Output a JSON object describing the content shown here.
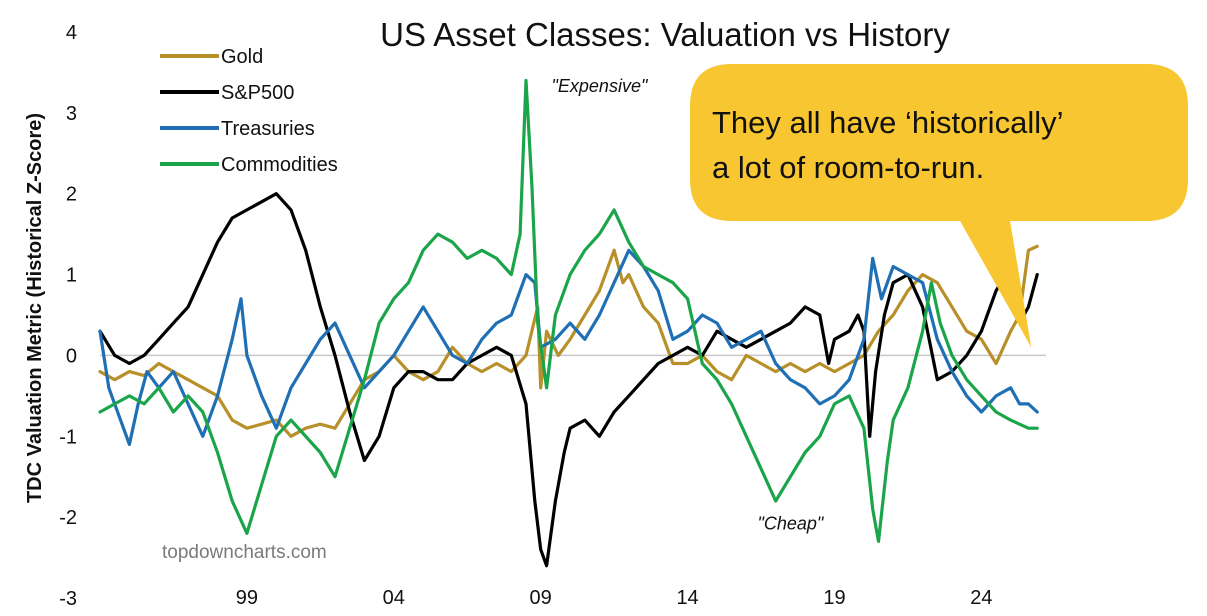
{
  "chart_data": {
    "type": "line",
    "title": "US Asset Classes: Valuation vs History",
    "ylabel": "TDC Valuation Metric (Historical Z-Score)",
    "xlabel": "",
    "ylim": [
      -3,
      4
    ],
    "y_ticks": [
      "4",
      "3",
      "2",
      "1",
      "0",
      "-1",
      "-2",
      "-3"
    ],
    "xlim": [
      1994,
      2026.2
    ],
    "x_ticks": [
      {
        "year": 1999,
        "label": "99"
      },
      {
        "year": 2004,
        "label": "04"
      },
      {
        "year": 2009,
        "label": "09"
      },
      {
        "year": 2014,
        "label": "14"
      },
      {
        "year": 2019,
        "label": "19"
      },
      {
        "year": 2024,
        "label": "24"
      }
    ],
    "zero_line": true,
    "legend_position": "top-left",
    "series": [
      {
        "name": "Gold",
        "color": "#B8902A",
        "points": [
          [
            1994.0,
            -0.2
          ],
          [
            1994.5,
            -0.3
          ],
          [
            1995.0,
            -0.2
          ],
          [
            1995.5,
            -0.25
          ],
          [
            1996.0,
            -0.1
          ],
          [
            1996.5,
            -0.2
          ],
          [
            1997.0,
            -0.3
          ],
          [
            1997.5,
            -0.4
          ],
          [
            1998.0,
            -0.5
          ],
          [
            1998.5,
            -0.8
          ],
          [
            1999.0,
            -0.9
          ],
          [
            1999.5,
            -0.85
          ],
          [
            2000.0,
            -0.8
          ],
          [
            2000.5,
            -1.0
          ],
          [
            2001.0,
            -0.9
          ],
          [
            2001.5,
            -0.85
          ],
          [
            2002.0,
            -0.9
          ],
          [
            2002.5,
            -0.6
          ],
          [
            2003.0,
            -0.3
          ],
          [
            2003.5,
            -0.2
          ],
          [
            2004.0,
            0.0
          ],
          [
            2004.5,
            -0.2
          ],
          [
            2005.0,
            -0.3
          ],
          [
            2005.5,
            -0.2
          ],
          [
            2006.0,
            0.1
          ],
          [
            2006.5,
            -0.1
          ],
          [
            2007.0,
            -0.2
          ],
          [
            2007.5,
            -0.1
          ],
          [
            2008.0,
            -0.2
          ],
          [
            2008.5,
            0.0
          ],
          [
            2008.9,
            0.6
          ],
          [
            2009.0,
            -0.4
          ],
          [
            2009.2,
            0.3
          ],
          [
            2009.6,
            0.0
          ],
          [
            2010.0,
            0.2
          ],
          [
            2010.5,
            0.5
          ],
          [
            2011.0,
            0.8
          ],
          [
            2011.5,
            1.3
          ],
          [
            2011.8,
            0.9
          ],
          [
            2012.0,
            1.0
          ],
          [
            2012.5,
            0.6
          ],
          [
            2013.0,
            0.4
          ],
          [
            2013.5,
            -0.1
          ],
          [
            2014.0,
            -0.1
          ],
          [
            2014.5,
            0.0
          ],
          [
            2015.0,
            -0.2
          ],
          [
            2015.5,
            -0.3
          ],
          [
            2016.0,
            0.0
          ],
          [
            2016.5,
            -0.1
          ],
          [
            2017.0,
            -0.2
          ],
          [
            2017.5,
            -0.1
          ],
          [
            2018.0,
            -0.2
          ],
          [
            2018.5,
            -0.1
          ],
          [
            2019.0,
            -0.2
          ],
          [
            2019.5,
            -0.1
          ],
          [
            2020.0,
            0.0
          ],
          [
            2020.5,
            0.3
          ],
          [
            2021.0,
            0.5
          ],
          [
            2021.5,
            0.8
          ],
          [
            2022.0,
            1.0
          ],
          [
            2022.5,
            0.9
          ],
          [
            2023.0,
            0.6
          ],
          [
            2023.5,
            0.3
          ],
          [
            2024.0,
            0.2
          ],
          [
            2024.5,
            -0.1
          ],
          [
            2025.0,
            0.3
          ],
          [
            2025.3,
            0.5
          ],
          [
            2025.6,
            1.3
          ],
          [
            2025.9,
            1.35
          ]
        ]
      },
      {
        "name": "S&P500",
        "color": "#000000",
        "points": [
          [
            1994.0,
            0.3
          ],
          [
            1994.5,
            0.0
          ],
          [
            1995.0,
            -0.1
          ],
          [
            1995.5,
            0.0
          ],
          [
            1996.0,
            0.2
          ],
          [
            1996.5,
            0.4
          ],
          [
            1997.0,
            0.6
          ],
          [
            1997.5,
            1.0
          ],
          [
            1998.0,
            1.4
          ],
          [
            1998.5,
            1.7
          ],
          [
            1999.0,
            1.8
          ],
          [
            1999.5,
            1.9
          ],
          [
            2000.0,
            2.0
          ],
          [
            2000.5,
            1.8
          ],
          [
            2001.0,
            1.3
          ],
          [
            2001.5,
            0.6
          ],
          [
            2002.0,
            0.0
          ],
          [
            2002.5,
            -0.7
          ],
          [
            2003.0,
            -1.3
          ],
          [
            2003.5,
            -1.0
          ],
          [
            2004.0,
            -0.4
          ],
          [
            2004.5,
            -0.2
          ],
          [
            2005.0,
            -0.2
          ],
          [
            2005.5,
            -0.3
          ],
          [
            2006.0,
            -0.3
          ],
          [
            2006.5,
            -0.1
          ],
          [
            2007.0,
            0.0
          ],
          [
            2007.5,
            0.1
          ],
          [
            2008.0,
            0.0
          ],
          [
            2008.5,
            -0.6
          ],
          [
            2008.8,
            -1.8
          ],
          [
            2009.0,
            -2.4
          ],
          [
            2009.2,
            -2.6
          ],
          [
            2009.5,
            -1.8
          ],
          [
            2009.8,
            -1.2
          ],
          [
            2010.0,
            -0.9
          ],
          [
            2010.5,
            -0.8
          ],
          [
            2011.0,
            -1.0
          ],
          [
            2011.5,
            -0.7
          ],
          [
            2012.0,
            -0.5
          ],
          [
            2012.5,
            -0.3
          ],
          [
            2013.0,
            -0.1
          ],
          [
            2013.5,
            0.0
          ],
          [
            2014.0,
            0.1
          ],
          [
            2014.5,
            0.0
          ],
          [
            2015.0,
            0.3
          ],
          [
            2015.5,
            0.2
          ],
          [
            2016.0,
            0.1
          ],
          [
            2016.5,
            0.2
          ],
          [
            2017.0,
            0.3
          ],
          [
            2017.5,
            0.4
          ],
          [
            2018.0,
            0.6
          ],
          [
            2018.5,
            0.5
          ],
          [
            2018.8,
            -0.1
          ],
          [
            2019.0,
            0.2
          ],
          [
            2019.5,
            0.3
          ],
          [
            2019.8,
            0.5
          ],
          [
            2020.0,
            0.3
          ],
          [
            2020.2,
            -1.0
          ],
          [
            2020.4,
            -0.2
          ],
          [
            2020.7,
            0.5
          ],
          [
            2021.0,
            0.9
          ],
          [
            2021.5,
            1.0
          ],
          [
            2022.0,
            0.6
          ],
          [
            2022.5,
            -0.3
          ],
          [
            2023.0,
            -0.2
          ],
          [
            2023.5,
            0.0
          ],
          [
            2024.0,
            0.3
          ],
          [
            2024.5,
            0.8
          ],
          [
            2025.0,
            1.1
          ],
          [
            2025.3,
            0.4
          ],
          [
            2025.6,
            0.6
          ],
          [
            2025.9,
            1.0
          ]
        ]
      },
      {
        "name": "Treasuries",
        "color": "#1F6FB5",
        "points": [
          [
            1994.0,
            0.3
          ],
          [
            1994.3,
            -0.4
          ],
          [
            1994.6,
            -0.7
          ],
          [
            1995.0,
            -1.1
          ],
          [
            1995.3,
            -0.6
          ],
          [
            1995.6,
            -0.2
          ],
          [
            1996.0,
            -0.4
          ],
          [
            1996.5,
            -0.2
          ],
          [
            1997.0,
            -0.6
          ],
          [
            1997.5,
            -1.0
          ],
          [
            1998.0,
            -0.5
          ],
          [
            1998.5,
            0.2
          ],
          [
            1998.8,
            0.7
          ],
          [
            1999.0,
            0.0
          ],
          [
            1999.5,
            -0.5
          ],
          [
            2000.0,
            -0.9
          ],
          [
            2000.5,
            -0.4
          ],
          [
            2001.0,
            -0.1
          ],
          [
            2001.5,
            0.2
          ],
          [
            2002.0,
            0.4
          ],
          [
            2002.5,
            0.0
          ],
          [
            2003.0,
            -0.4
          ],
          [
            2003.5,
            -0.2
          ],
          [
            2004.0,
            0.0
          ],
          [
            2004.5,
            0.3
          ],
          [
            2005.0,
            0.6
          ],
          [
            2005.5,
            0.3
          ],
          [
            2006.0,
            0.0
          ],
          [
            2006.5,
            -0.1
          ],
          [
            2007.0,
            0.2
          ],
          [
            2007.5,
            0.4
          ],
          [
            2008.0,
            0.5
          ],
          [
            2008.5,
            1.0
          ],
          [
            2008.8,
            0.9
          ],
          [
            2009.0,
            0.1
          ],
          [
            2009.5,
            0.2
          ],
          [
            2010.0,
            0.4
          ],
          [
            2010.5,
            0.2
          ],
          [
            2011.0,
            0.5
          ],
          [
            2011.5,
            0.9
          ],
          [
            2012.0,
            1.3
          ],
          [
            2012.5,
            1.1
          ],
          [
            2013.0,
            0.8
          ],
          [
            2013.5,
            0.2
          ],
          [
            2014.0,
            0.3
          ],
          [
            2014.5,
            0.5
          ],
          [
            2015.0,
            0.4
          ],
          [
            2015.5,
            0.1
          ],
          [
            2016.0,
            0.2
          ],
          [
            2016.5,
            0.3
          ],
          [
            2017.0,
            -0.1
          ],
          [
            2017.5,
            -0.3
          ],
          [
            2018.0,
            -0.4
          ],
          [
            2018.5,
            -0.6
          ],
          [
            2019.0,
            -0.5
          ],
          [
            2019.5,
            -0.3
          ],
          [
            2020.0,
            0.2
          ],
          [
            2020.3,
            1.2
          ],
          [
            2020.6,
            0.7
          ],
          [
            2021.0,
            1.1
          ],
          [
            2021.5,
            1.0
          ],
          [
            2022.0,
            0.9
          ],
          [
            2022.5,
            0.2
          ],
          [
            2023.0,
            -0.2
          ],
          [
            2023.5,
            -0.5
          ],
          [
            2024.0,
            -0.7
          ],
          [
            2024.5,
            -0.5
          ],
          [
            2025.0,
            -0.4
          ],
          [
            2025.3,
            -0.6
          ],
          [
            2025.6,
            -0.6
          ],
          [
            2025.9,
            -0.7
          ]
        ]
      },
      {
        "name": "Commodities",
        "color": "#1BA54A",
        "points": [
          [
            1994.0,
            -0.7
          ],
          [
            1994.5,
            -0.6
          ],
          [
            1995.0,
            -0.5
          ],
          [
            1995.5,
            -0.6
          ],
          [
            1996.0,
            -0.4
          ],
          [
            1996.5,
            -0.7
          ],
          [
            1997.0,
            -0.5
          ],
          [
            1997.5,
            -0.7
          ],
          [
            1998.0,
            -1.2
          ],
          [
            1998.5,
            -1.8
          ],
          [
            1999.0,
            -2.2
          ],
          [
            1999.5,
            -1.6
          ],
          [
            2000.0,
            -1.0
          ],
          [
            2000.5,
            -0.8
          ],
          [
            2001.0,
            -1.0
          ],
          [
            2001.5,
            -1.2
          ],
          [
            2002.0,
            -1.5
          ],
          [
            2002.5,
            -0.9
          ],
          [
            2003.0,
            -0.3
          ],
          [
            2003.5,
            0.4
          ],
          [
            2004.0,
            0.7
          ],
          [
            2004.5,
            0.9
          ],
          [
            2005.0,
            1.3
          ],
          [
            2005.5,
            1.5
          ],
          [
            2006.0,
            1.4
          ],
          [
            2006.5,
            1.2
          ],
          [
            2007.0,
            1.3
          ],
          [
            2007.5,
            1.2
          ],
          [
            2008.0,
            1.0
          ],
          [
            2008.3,
            1.5
          ],
          [
            2008.5,
            3.4
          ],
          [
            2008.7,
            2.1
          ],
          [
            2008.9,
            0.4
          ],
          [
            2009.2,
            -0.4
          ],
          [
            2009.5,
            0.5
          ],
          [
            2010.0,
            1.0
          ],
          [
            2010.5,
            1.3
          ],
          [
            2011.0,
            1.5
          ],
          [
            2011.5,
            1.8
          ],
          [
            2012.0,
            1.4
          ],
          [
            2012.5,
            1.1
          ],
          [
            2013.0,
            1.0
          ],
          [
            2013.5,
            0.9
          ],
          [
            2014.0,
            0.7
          ],
          [
            2014.5,
            -0.1
          ],
          [
            2015.0,
            -0.3
          ],
          [
            2015.5,
            -0.6
          ],
          [
            2016.0,
            -1.0
          ],
          [
            2016.5,
            -1.4
          ],
          [
            2017.0,
            -1.8
          ],
          [
            2017.5,
            -1.5
          ],
          [
            2018.0,
            -1.2
          ],
          [
            2018.5,
            -1.0
          ],
          [
            2019.0,
            -0.6
          ],
          [
            2019.5,
            -0.5
          ],
          [
            2020.0,
            -0.9
          ],
          [
            2020.3,
            -1.9
          ],
          [
            2020.5,
            -2.3
          ],
          [
            2020.8,
            -1.3
          ],
          [
            2021.0,
            -0.8
          ],
          [
            2021.5,
            -0.4
          ],
          [
            2022.0,
            0.3
          ],
          [
            2022.3,
            0.9
          ],
          [
            2022.6,
            0.4
          ],
          [
            2023.0,
            0.0
          ],
          [
            2023.5,
            -0.3
          ],
          [
            2024.0,
            -0.5
          ],
          [
            2024.5,
            -0.7
          ],
          [
            2025.0,
            -0.8
          ],
          [
            2025.3,
            -0.85
          ],
          [
            2025.6,
            -0.9
          ],
          [
            2025.9,
            -0.9
          ]
        ]
      }
    ],
    "annotations": [
      {
        "text": "\"Expensive\"",
        "x": 2011.0,
        "y": 3.26
      },
      {
        "text": "\"Cheap\"",
        "x": 2017.5,
        "y": -2.15
      }
    ],
    "source": "topdowncharts.com",
    "callout": {
      "lines": [
        "They all have ‘historically’",
        "a lot of room-to-run."
      ],
      "fill": "#F8C630",
      "pointer_target": {
        "x": 2025.7,
        "y": 0.1
      }
    }
  }
}
